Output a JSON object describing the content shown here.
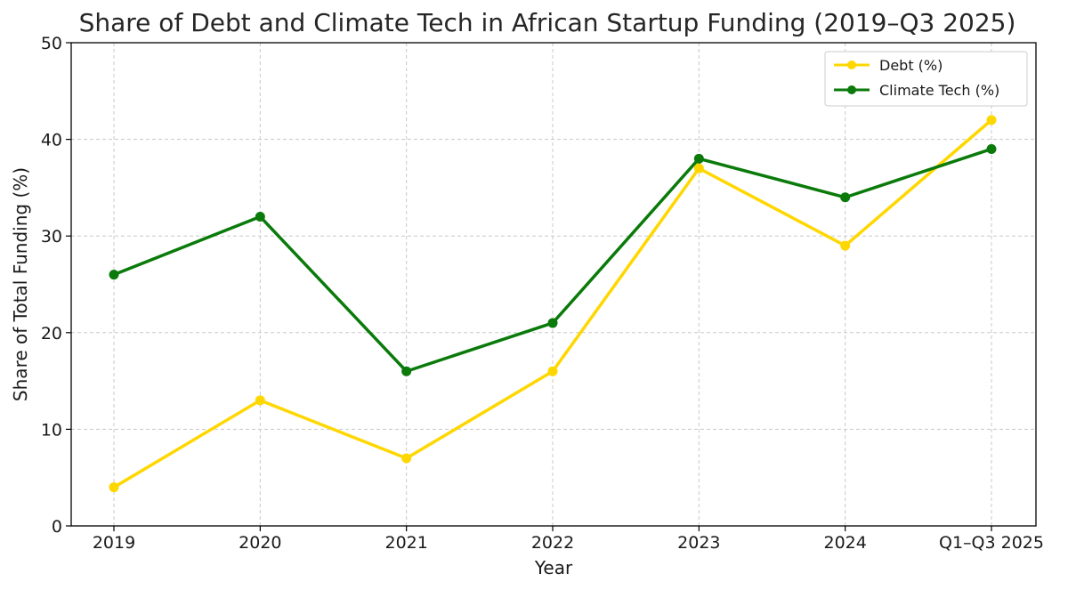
{
  "chart_data": {
    "type": "line",
    "title": "Share of Debt and Climate Tech in African Startup Funding (2019–Q3 2025)",
    "xlabel": "Year",
    "ylabel": "Share of Total Funding (%)",
    "categories": [
      "2019",
      "2020",
      "2021",
      "2022",
      "2023",
      "2024",
      "Q1–Q3 2025"
    ],
    "ylim": [
      0,
      50
    ],
    "yticks": [
      0,
      10,
      20,
      30,
      40,
      50
    ],
    "grid": true,
    "legend_position": "top-right",
    "series": [
      {
        "name": "Debt (%)",
        "color": "#FFD700",
        "values": [
          4,
          13,
          7,
          16,
          37,
          29,
          42
        ]
      },
      {
        "name": "Climate Tech (%)",
        "color": "#0A7A0A",
        "values": [
          26,
          32,
          16,
          21,
          38,
          34,
          39
        ]
      }
    ]
  }
}
